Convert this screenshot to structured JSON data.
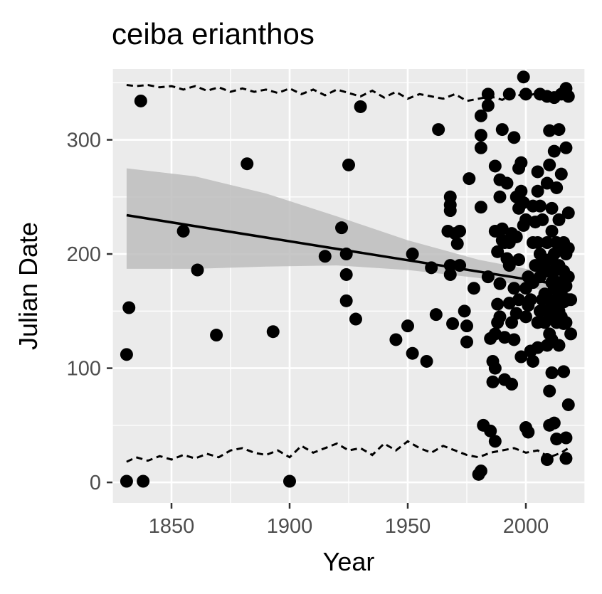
{
  "chart_data": {
    "type": "scatter",
    "title": "ceiba erianthos",
    "xlabel": "Year",
    "ylabel": "Julian Date",
    "xlim": [
      1825,
      2025
    ],
    "ylim": [
      -18,
      362
    ],
    "x_ticks": [
      1850,
      1900,
      1950,
      2000
    ],
    "y_ticks": [
      0,
      100,
      200,
      300
    ],
    "x_tick_labels": [
      "1850",
      "1900",
      "1950",
      "2000"
    ],
    "y_tick_labels": [
      "0",
      "100",
      "200",
      "300"
    ],
    "grid": true,
    "legend": "none",
    "colors": {
      "panel": "#ebebeb",
      "grid": "#ffffff",
      "points": "#000000",
      "ribbon": "#bdbdbd",
      "line": "#000000"
    },
    "points": [
      [
        1831,
        1
      ],
      [
        1838,
        1
      ],
      [
        1900,
        1
      ],
      [
        1831,
        112
      ],
      [
        1832,
        153
      ],
      [
        1837,
        334
      ],
      [
        1855,
        220
      ],
      [
        1861,
        186
      ],
      [
        1869,
        129
      ],
      [
        1882,
        279
      ],
      [
        1893,
        132
      ],
      [
        1915,
        198
      ],
      [
        1922,
        223
      ],
      [
        1924,
        200
      ],
      [
        1924,
        182
      ],
      [
        1924,
        159
      ],
      [
        1925,
        278
      ],
      [
        1928,
        143
      ],
      [
        1930,
        329
      ],
      [
        1945,
        125
      ],
      [
        1950,
        137
      ],
      [
        1952,
        113
      ],
      [
        1952,
        200
      ],
      [
        1958,
        106
      ],
      [
        1960,
        188
      ],
      [
        1962,
        147
      ],
      [
        1963,
        309
      ],
      [
        1967,
        220
      ],
      [
        1968,
        250
      ],
      [
        1968,
        243
      ],
      [
        1968,
        238
      ],
      [
        1968,
        190
      ],
      [
        1968,
        182
      ],
      [
        1969,
        139
      ],
      [
        1970,
        218
      ],
      [
        1971,
        209
      ],
      [
        1972,
        220
      ],
      [
        1972,
        190
      ],
      [
        1974,
        150
      ],
      [
        1975,
        137
      ],
      [
        1975,
        123
      ],
      [
        1976,
        266
      ],
      [
        1978,
        170
      ],
      [
        1980,
        7
      ],
      [
        1981,
        10
      ],
      [
        1981,
        241
      ],
      [
        1981,
        293
      ],
      [
        1981,
        304
      ],
      [
        1981,
        321
      ],
      [
        1982,
        50
      ],
      [
        1984,
        340
      ],
      [
        1984,
        330
      ],
      [
        1984,
        180
      ],
      [
        1985,
        45
      ],
      [
        1985,
        126
      ],
      [
        1986,
        88
      ],
      [
        1986,
        106
      ],
      [
        1987,
        36
      ],
      [
        1987,
        100
      ],
      [
        1987,
        277
      ],
      [
        1987,
        220
      ],
      [
        1987,
        130
      ],
      [
        1988,
        156
      ],
      [
        1988,
        140
      ],
      [
        1988,
        202
      ],
      [
        1989,
        265
      ],
      [
        1989,
        250
      ],
      [
        1989,
        174
      ],
      [
        1989,
        145
      ],
      [
        1990,
        309
      ],
      [
        1990,
        212
      ],
      [
        1990,
        222
      ],
      [
        1991,
        210
      ],
      [
        1991,
        127
      ],
      [
        1991,
        90
      ],
      [
        1992,
        262
      ],
      [
        1992,
        196
      ],
      [
        1993,
        340
      ],
      [
        1993,
        210
      ],
      [
        1993,
        190
      ],
      [
        1993,
        157
      ],
      [
        1994,
        218
      ],
      [
        1994,
        140
      ],
      [
        1994,
        86
      ],
      [
        1995,
        302
      ],
      [
        1995,
        170
      ],
      [
        1995,
        125
      ],
      [
        1996,
        250
      ],
      [
        1996,
        215
      ],
      [
        1996,
        148
      ],
      [
        1997,
        275
      ],
      [
        1997,
        240
      ],
      [
        1997,
        195
      ],
      [
        1997,
        160
      ],
      [
        1998,
        280
      ],
      [
        1998,
        255
      ],
      [
        1998,
        110
      ],
      [
        1999,
        355
      ],
      [
        1999,
        245
      ],
      [
        1999,
        225
      ],
      [
        2000,
        340
      ],
      [
        2000,
        230
      ],
      [
        2000,
        170
      ],
      [
        2000,
        145
      ],
      [
        2000,
        48
      ],
      [
        2001,
        180
      ],
      [
        2001,
        155
      ],
      [
        2001,
        44
      ],
      [
        2002,
        115
      ],
      [
        2002,
        160
      ],
      [
        2003,
        242
      ],
      [
        2003,
        210
      ],
      [
        2003,
        175
      ],
      [
        2003,
        106
      ],
      [
        2004,
        190
      ],
      [
        2004,
        228
      ],
      [
        2005,
        272
      ],
      [
        2005,
        255
      ],
      [
        2005,
        210
      ],
      [
        2005,
        140
      ],
      [
        2005,
        118
      ],
      [
        2006,
        340
      ],
      [
        2006,
        242
      ],
      [
        2006,
        200
      ],
      [
        2006,
        180
      ],
      [
        2006,
        150
      ],
      [
        2007,
        230
      ],
      [
        2007,
        190
      ],
      [
        2007,
        160
      ],
      [
        2008,
        195
      ],
      [
        2008,
        165
      ],
      [
        2008,
        140
      ],
      [
        2009,
        338
      ],
      [
        2009,
        262
      ],
      [
        2009,
        210
      ],
      [
        2009,
        185
      ],
      [
        2009,
        150
      ],
      [
        2009,
        120
      ],
      [
        2009,
        20
      ],
      [
        2010,
        308
      ],
      [
        2010,
        278
      ],
      [
        2010,
        195
      ],
      [
        2010,
        160
      ],
      [
        2010,
        130
      ],
      [
        2010,
        80
      ],
      [
        2010,
        50
      ],
      [
        2011,
        240
      ],
      [
        2011,
        220
      ],
      [
        2011,
        175
      ],
      [
        2011,
        145
      ],
      [
        2011,
        96
      ],
      [
        2011,
        125
      ],
      [
        2012,
        337
      ],
      [
        2012,
        290
      ],
      [
        2012,
        200
      ],
      [
        2012,
        185
      ],
      [
        2012,
        170
      ],
      [
        2012,
        155
      ],
      [
        2012,
        52
      ],
      [
        2013,
        258
      ],
      [
        2013,
        210
      ],
      [
        2013,
        160
      ],
      [
        2013,
        140
      ],
      [
        2013,
        38
      ],
      [
        2014,
        309
      ],
      [
        2014,
        230
      ],
      [
        2014,
        190
      ],
      [
        2014,
        175
      ],
      [
        2014,
        150
      ],
      [
        2014,
        120
      ],
      [
        2015,
        340
      ],
      [
        2015,
        270
      ],
      [
        2015,
        205
      ],
      [
        2015,
        165
      ],
      [
        2015,
        145
      ],
      [
        2016,
        210
      ],
      [
        2016,
        185
      ],
      [
        2016,
        158
      ],
      [
        2016,
        139
      ],
      [
        2016,
        97
      ],
      [
        2017,
        345
      ],
      [
        2017,
        293
      ],
      [
        2017,
        200
      ],
      [
        2017,
        172
      ],
      [
        2017,
        140
      ],
      [
        2017,
        39
      ],
      [
        2017,
        21
      ],
      [
        2018,
        338
      ],
      [
        2018,
        236
      ],
      [
        2018,
        205
      ],
      [
        2018,
        180
      ],
      [
        2018,
        160
      ],
      [
        2018,
        68
      ],
      [
        2019,
        160
      ],
      [
        2019,
        130
      ]
    ],
    "trend_line": {
      "x": [
        1831,
        2018
      ],
      "y": [
        234,
        172
      ]
    },
    "confidence_band": {
      "x": [
        1831,
        1860,
        1890,
        1920,
        1950,
        1980,
        2000,
        2018
      ],
      "lower": [
        187,
        187,
        189,
        190,
        186,
        179,
        172,
        162
      ],
      "upper": [
        275,
        268,
        253,
        233,
        212,
        195,
        187,
        182
      ]
    },
    "dashed_upper": {
      "x": [
        1831,
        1835,
        1840,
        1845,
        1850,
        1855,
        1860,
        1865,
        1870,
        1875,
        1880,
        1885,
        1890,
        1895,
        1900,
        1905,
        1910,
        1915,
        1920,
        1925,
        1930,
        1935,
        1940,
        1945,
        1950,
        1955,
        1960,
        1965,
        1970,
        1975,
        1980,
        1985,
        1990,
        1995,
        2000,
        2005,
        2010,
        2015,
        2018
      ],
      "y": [
        348,
        347,
        348,
        346,
        347,
        344,
        347,
        343,
        346,
        342,
        345,
        342,
        344,
        341,
        345,
        340,
        344,
        339,
        344,
        341,
        338,
        343,
        337,
        342,
        336,
        340,
        338,
        336,
        340,
        334,
        336,
        338,
        335,
        340,
        338,
        341,
        336,
        340,
        342
      ]
    },
    "dashed_lower": {
      "x": [
        1831,
        1835,
        1840,
        1845,
        1850,
        1855,
        1860,
        1865,
        1870,
        1875,
        1880,
        1885,
        1890,
        1895,
        1900,
        1905,
        1910,
        1915,
        1920,
        1925,
        1930,
        1935,
        1940,
        1945,
        1950,
        1955,
        1960,
        1965,
        1970,
        1975,
        1980,
        1985,
        1990,
        1995,
        2000,
        2005,
        2010,
        2015,
        2018
      ],
      "y": [
        18,
        22,
        19,
        23,
        20,
        24,
        21,
        25,
        22,
        28,
        30,
        26,
        24,
        28,
        22,
        32,
        26,
        30,
        34,
        28,
        30,
        24,
        34,
        28,
        36,
        30,
        26,
        32,
        28,
        24,
        22,
        26,
        28,
        30,
        26,
        28,
        22,
        26,
        30
      ]
    }
  }
}
